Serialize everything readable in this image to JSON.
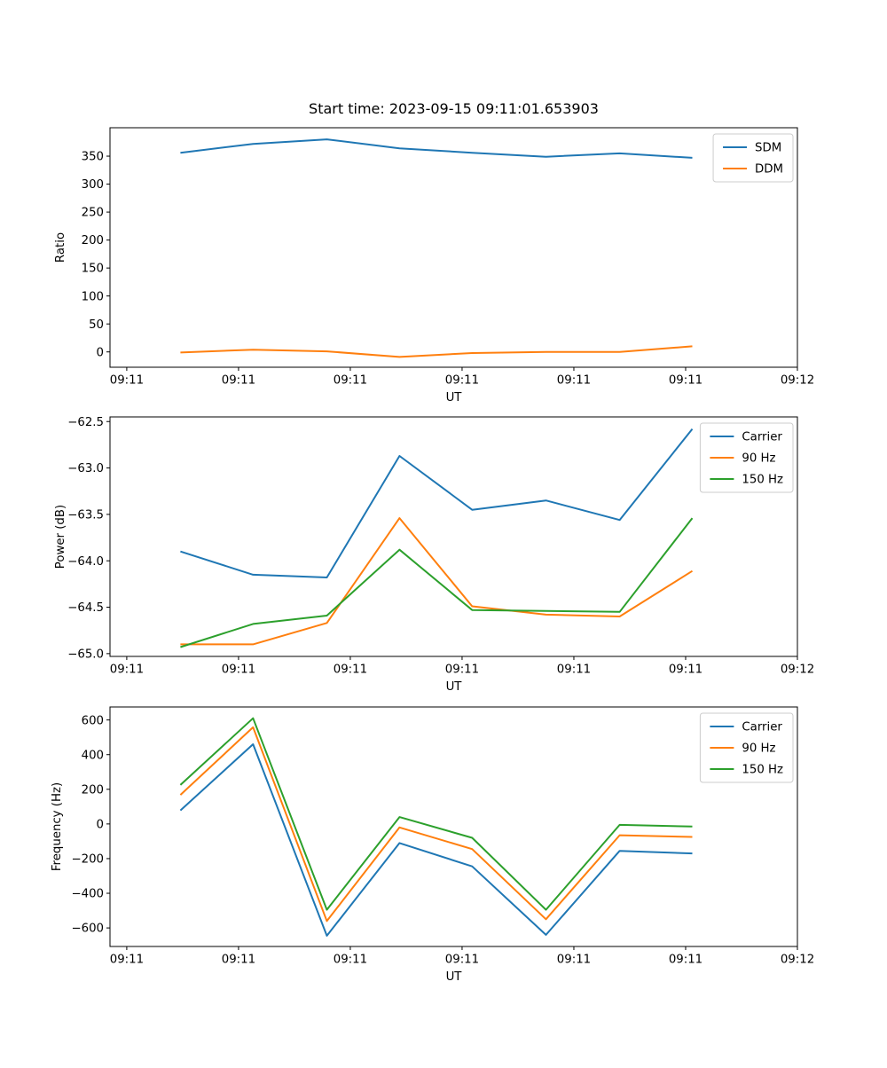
{
  "figure": {
    "title": "Start time: 2023-09-15 09:11:01.653903",
    "background": "#ffffff"
  },
  "colors": {
    "blue": "#1f77b4",
    "orange": "#ff7f0e",
    "green": "#2ca02c",
    "axes": "#000000",
    "legend_border": "#cccccc"
  },
  "chart_data": [
    {
      "type": "line",
      "ylabel": "Ratio",
      "xlabel": "UT",
      "grid": false,
      "legend_position": "upper right",
      "x_seconds": [
        4.8,
        11.3,
        17.9,
        24.4,
        30.9,
        37.5,
        44.1,
        50.6
      ],
      "xlim": [
        -1.5,
        60
      ],
      "x_ticks": {
        "values": [
          0,
          10,
          20,
          30,
          40,
          50,
          60
        ],
        "labels": [
          "09:11",
          "09:11",
          "09:11",
          "09:11",
          "09:11",
          "09:11",
          "09:12"
        ]
      },
      "ylim": [
        -27.4,
        400.8
      ],
      "y_ticks": {
        "values": [
          0,
          50,
          100,
          150,
          200,
          250,
          300,
          350
        ],
        "labels": [
          "0",
          "50",
          "100",
          "150",
          "200",
          "250",
          "300",
          "350"
        ]
      },
      "series": [
        {
          "name": "SDM",
          "color": "#1f77b4",
          "values": [
            356,
            372,
            380,
            364,
            356,
            349,
            355,
            347
          ]
        },
        {
          "name": "DDM",
          "color": "#ff7f0e",
          "values": [
            -1,
            4,
            1,
            -9,
            -2,
            0,
            0,
            10
          ]
        }
      ]
    },
    {
      "type": "line",
      "ylabel": "Power (dB)",
      "xlabel": "UT",
      "grid": false,
      "legend_position": "upper right",
      "x_seconds": [
        4.8,
        11.3,
        17.9,
        24.4,
        30.9,
        37.5,
        44.1,
        50.6
      ],
      "xlim": [
        -1.5,
        60
      ],
      "x_ticks": {
        "values": [
          0,
          10,
          20,
          30,
          40,
          50,
          60
        ],
        "labels": [
          "09:11",
          "09:11",
          "09:11",
          "09:11",
          "09:11",
          "09:11",
          "09:12"
        ]
      },
      "ylim": [
        -65.03,
        -62.45
      ],
      "y_ticks": {
        "values": [
          -62.5,
          -63.0,
          -63.5,
          -64.0,
          -64.5,
          -65.0
        ],
        "labels": [
          "−62.5",
          "−63.0",
          "−63.5",
          "−64.0",
          "−64.5",
          "−65.0"
        ]
      },
      "series": [
        {
          "name": "Carrier",
          "color": "#1f77b4",
          "values": [
            -63.9,
            -64.15,
            -64.18,
            -62.87,
            -63.45,
            -63.35,
            -63.56,
            -62.58
          ]
        },
        {
          "name": "90 Hz",
          "color": "#ff7f0e",
          "values": [
            -64.9,
            -64.9,
            -64.67,
            -63.54,
            -64.49,
            -64.58,
            -64.6,
            -64.11
          ]
        },
        {
          "name": "150 Hz",
          "color": "#2ca02c",
          "values": [
            -64.93,
            -64.68,
            -64.59,
            -63.88,
            -64.53,
            -64.54,
            -64.55,
            -63.54
          ]
        }
      ]
    },
    {
      "type": "line",
      "ylabel": "Frequency (Hz)",
      "xlabel": "UT",
      "grid": false,
      "legend_position": "upper right",
      "x_seconds": [
        4.8,
        11.3,
        17.9,
        24.4,
        30.9,
        37.5,
        44.1,
        50.6
      ],
      "xlim": [
        -1.5,
        60
      ],
      "x_ticks": {
        "values": [
          0,
          10,
          20,
          30,
          40,
          50,
          60
        ],
        "labels": [
          "09:11",
          "09:11",
          "09:11",
          "09:11",
          "09:11",
          "09:11",
          "09:12"
        ]
      },
      "ylim": [
        -707,
        675
      ],
      "y_ticks": {
        "values": [
          600,
          400,
          200,
          0,
          -200,
          -400,
          -600
        ],
        "labels": [
          "600",
          "400",
          "200",
          "0",
          "−200",
          "−400",
          "−600"
        ]
      },
      "series": [
        {
          "name": "Carrier",
          "color": "#1f77b4",
          "values": [
            78,
            460,
            -645,
            -110,
            -245,
            -640,
            -155,
            -170
          ]
        },
        {
          "name": "90 Hz",
          "color": "#ff7f0e",
          "values": [
            168,
            558,
            -560,
            -20,
            -145,
            -550,
            -65,
            -75
          ]
        },
        {
          "name": "150 Hz",
          "color": "#2ca02c",
          "values": [
            225,
            610,
            -495,
            40,
            -80,
            -495,
            -5,
            -15
          ]
        }
      ]
    }
  ]
}
